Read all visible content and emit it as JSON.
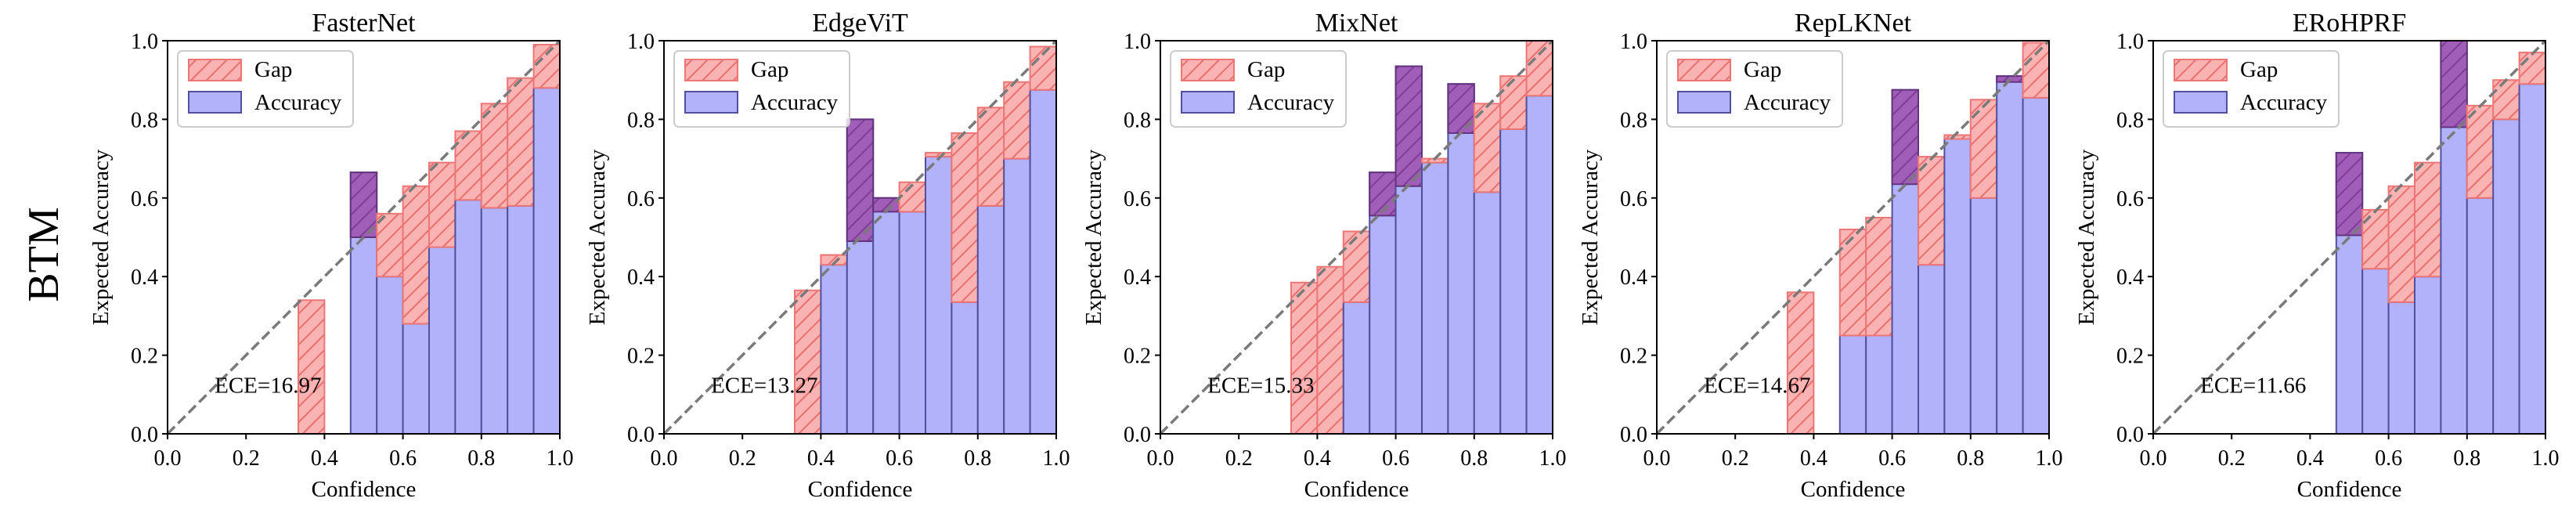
{
  "figure": {
    "row_label": "BTM"
  },
  "colors": {
    "accuracy_fill": "#b2b2fa",
    "accuracy_edge": "#50509c",
    "gap_fill": "#fab3b3",
    "gap_hatch": "#e96f6f",
    "gap_edge": "#ec7676",
    "overlap_fill": "#a05eb8",
    "overlap_hatch": "#7e3e98",
    "overlap_edge": "#63337e",
    "diagonal": "#7a7a7a",
    "axes": "#000000",
    "legend_edge": "#cccccc"
  },
  "chart_data": [
    {
      "type": "bar",
      "title": "FasterNet",
      "xlabel": "Confidence",
      "ylabel": "Expected Accuracy",
      "xlim": [
        0.0,
        1.0
      ],
      "ylim": [
        0.0,
        1.0
      ],
      "xticks": [
        "0.0",
        "0.2",
        "0.4",
        "0.6",
        "0.8",
        "1.0"
      ],
      "yticks": [
        "0.0",
        "0.2",
        "0.4",
        "0.6",
        "0.8",
        "1.0"
      ],
      "legend": [
        "Gap",
        "Accuracy"
      ],
      "ece_label": "ECE=16.97",
      "n_bins": 15,
      "bins": [
        {
          "bin": 5,
          "accuracy": 0.0,
          "confidence": 0.34
        },
        {
          "bin": 7,
          "accuracy": 0.665,
          "confidence": 0.5
        },
        {
          "bin": 8,
          "accuracy": 0.4,
          "confidence": 0.56
        },
        {
          "bin": 9,
          "accuracy": 0.28,
          "confidence": 0.63
        },
        {
          "bin": 10,
          "accuracy": 0.475,
          "confidence": 0.69
        },
        {
          "bin": 11,
          "accuracy": 0.595,
          "confidence": 0.77
        },
        {
          "bin": 12,
          "accuracy": 0.575,
          "confidence": 0.84
        },
        {
          "bin": 13,
          "accuracy": 0.58,
          "confidence": 0.905
        },
        {
          "bin": 14,
          "accuracy": 0.88,
          "confidence": 0.99
        }
      ]
    },
    {
      "type": "bar",
      "title": "EdgeViT",
      "xlabel": "Confidence",
      "ylabel": "Expected Accuracy",
      "xlim": [
        0.0,
        1.0
      ],
      "ylim": [
        0.0,
        1.0
      ],
      "xticks": [
        "0.0",
        "0.2",
        "0.4",
        "0.6",
        "0.8",
        "1.0"
      ],
      "yticks": [
        "0.0",
        "0.2",
        "0.4",
        "0.6",
        "0.8",
        "1.0"
      ],
      "legend": [
        "Gap",
        "Accuracy"
      ],
      "ece_label": "ECE=13.27",
      "n_bins": 15,
      "bins": [
        {
          "bin": 5,
          "accuracy": 0.0,
          "confidence": 0.365
        },
        {
          "bin": 6,
          "accuracy": 0.43,
          "confidence": 0.455
        },
        {
          "bin": 7,
          "accuracy": 0.8,
          "confidence": 0.49
        },
        {
          "bin": 8,
          "accuracy": 0.6,
          "confidence": 0.565
        },
        {
          "bin": 9,
          "accuracy": 0.565,
          "confidence": 0.64
        },
        {
          "bin": 10,
          "accuracy": 0.705,
          "confidence": 0.715
        },
        {
          "bin": 11,
          "accuracy": 0.335,
          "confidence": 0.765
        },
        {
          "bin": 12,
          "accuracy": 0.58,
          "confidence": 0.83
        },
        {
          "bin": 13,
          "accuracy": 0.7,
          "confidence": 0.895
        },
        {
          "bin": 14,
          "accuracy": 0.875,
          "confidence": 0.985
        }
      ]
    },
    {
      "type": "bar",
      "title": "MixNet",
      "xlabel": "Confidence",
      "ylabel": "Expected Accuracy",
      "xlim": [
        0.0,
        1.0
      ],
      "ylim": [
        0.0,
        1.0
      ],
      "xticks": [
        "0.0",
        "0.2",
        "0.4",
        "0.6",
        "0.8",
        "1.0"
      ],
      "yticks": [
        "0.0",
        "0.2",
        "0.4",
        "0.6",
        "0.8",
        "1.0"
      ],
      "legend": [
        "Gap",
        "Accuracy"
      ],
      "ece_label": "ECE=15.33",
      "n_bins": 15,
      "bins": [
        {
          "bin": 5,
          "accuracy": 0.0,
          "confidence": 0.385
        },
        {
          "bin": 6,
          "accuracy": 0.0,
          "confidence": 0.425
        },
        {
          "bin": 7,
          "accuracy": 0.335,
          "confidence": 0.515
        },
        {
          "bin": 8,
          "accuracy": 0.665,
          "confidence": 0.555
        },
        {
          "bin": 9,
          "accuracy": 0.935,
          "confidence": 0.63
        },
        {
          "bin": 10,
          "accuracy": 0.69,
          "confidence": 0.7
        },
        {
          "bin": 11,
          "accuracy": 0.89,
          "confidence": 0.765
        },
        {
          "bin": 12,
          "accuracy": 0.615,
          "confidence": 0.84
        },
        {
          "bin": 13,
          "accuracy": 0.775,
          "confidence": 0.91
        },
        {
          "bin": 14,
          "accuracy": 0.86,
          "confidence": 1.0
        }
      ]
    },
    {
      "type": "bar",
      "title": "RepLKNet",
      "xlabel": "Confidence",
      "ylabel": "Expected Accuracy",
      "xlim": [
        0.0,
        1.0
      ],
      "ylim": [
        0.0,
        1.0
      ],
      "xticks": [
        "0.0",
        "0.2",
        "0.4",
        "0.6",
        "0.8",
        "1.0"
      ],
      "yticks": [
        "0.0",
        "0.2",
        "0.4",
        "0.6",
        "0.8",
        "1.0"
      ],
      "legend": [
        "Gap",
        "Accuracy"
      ],
      "ece_label": "ECE=14.67",
      "n_bins": 15,
      "bins": [
        {
          "bin": 5,
          "accuracy": 0.0,
          "confidence": 0.36
        },
        {
          "bin": 7,
          "accuracy": 0.25,
          "confidence": 0.52
        },
        {
          "bin": 8,
          "accuracy": 0.25,
          "confidence": 0.55
        },
        {
          "bin": 9,
          "accuracy": 0.875,
          "confidence": 0.635
        },
        {
          "bin": 10,
          "accuracy": 0.43,
          "confidence": 0.705
        },
        {
          "bin": 11,
          "accuracy": 0.75,
          "confidence": 0.76
        },
        {
          "bin": 12,
          "accuracy": 0.6,
          "confidence": 0.85
        },
        {
          "bin": 13,
          "accuracy": 0.91,
          "confidence": 0.895
        },
        {
          "bin": 14,
          "accuracy": 0.855,
          "confidence": 0.995
        }
      ]
    },
    {
      "type": "bar",
      "title": "ERoHPRF",
      "xlabel": "Confidence",
      "ylabel": "Expected Accuracy",
      "xlim": [
        0.0,
        1.0
      ],
      "ylim": [
        0.0,
        1.0
      ],
      "xticks": [
        "0.0",
        "0.2",
        "0.4",
        "0.6",
        "0.8",
        "1.0"
      ],
      "yticks": [
        "0.0",
        "0.2",
        "0.4",
        "0.6",
        "0.8",
        "1.0"
      ],
      "legend": [
        "Gap",
        "Accuracy"
      ],
      "ece_label": "ECE=11.66",
      "n_bins": 15,
      "bins": [
        {
          "bin": 7,
          "accuracy": 0.715,
          "confidence": 0.505
        },
        {
          "bin": 8,
          "accuracy": 0.42,
          "confidence": 0.57
        },
        {
          "bin": 9,
          "accuracy": 0.335,
          "confidence": 0.63
        },
        {
          "bin": 10,
          "accuracy": 0.4,
          "confidence": 0.69
        },
        {
          "bin": 11,
          "accuracy": 1.0,
          "confidence": 0.78
        },
        {
          "bin": 12,
          "accuracy": 0.6,
          "confidence": 0.835
        },
        {
          "bin": 13,
          "accuracy": 0.8,
          "confidence": 0.9
        },
        {
          "bin": 14,
          "accuracy": 0.89,
          "confidence": 0.97
        }
      ]
    }
  ]
}
